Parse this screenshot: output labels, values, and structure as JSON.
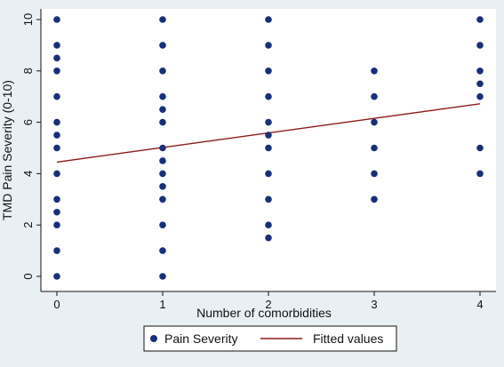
{
  "chart_data": {
    "type": "scatter",
    "xlabel": "Number of comorbidities",
    "ylabel": "TMD Pain Severity (0-10)",
    "xlim": [
      0,
      4
    ],
    "ylim": [
      0,
      10
    ],
    "x_ticks": [
      0,
      1,
      2,
      3,
      4
    ],
    "y_ticks": [
      0,
      2,
      4,
      6,
      8,
      10
    ],
    "grid": false,
    "legend_position": "bottom",
    "series": [
      {
        "name": "Pain Severity",
        "kind": "scatter",
        "color": "#1a2f7a",
        "points": [
          [
            0,
            10
          ],
          [
            0,
            9
          ],
          [
            0,
            8.5
          ],
          [
            0,
            8
          ],
          [
            0,
            7
          ],
          [
            0,
            6
          ],
          [
            0,
            5.5
          ],
          [
            0,
            5
          ],
          [
            0,
            4
          ],
          [
            0,
            3
          ],
          [
            0,
            2.5
          ],
          [
            0,
            2
          ],
          [
            0,
            1
          ],
          [
            0,
            0
          ],
          [
            1,
            10
          ],
          [
            1,
            9
          ],
          [
            1,
            8
          ],
          [
            1,
            7
          ],
          [
            1,
            6.5
          ],
          [
            1,
            6
          ],
          [
            1,
            5
          ],
          [
            1,
            4.5
          ],
          [
            1,
            4
          ],
          [
            1,
            3.5
          ],
          [
            1,
            3
          ],
          [
            1,
            2
          ],
          [
            1,
            1
          ],
          [
            1,
            0
          ],
          [
            2,
            10
          ],
          [
            2,
            9
          ],
          [
            2,
            8
          ],
          [
            2,
            7
          ],
          [
            2,
            6
          ],
          [
            2,
            5.5
          ],
          [
            2,
            5
          ],
          [
            2,
            4
          ],
          [
            2,
            3
          ],
          [
            2,
            2
          ],
          [
            2,
            1.5
          ],
          [
            3,
            8
          ],
          [
            3,
            7
          ],
          [
            3,
            6
          ],
          [
            3,
            5
          ],
          [
            3,
            4
          ],
          [
            3,
            3
          ],
          [
            4,
            10
          ],
          [
            4,
            9
          ],
          [
            4,
            8
          ],
          [
            4,
            7.5
          ],
          [
            4,
            7
          ],
          [
            4,
            5
          ],
          [
            4,
            4
          ]
        ]
      },
      {
        "name": "Fitted values",
        "kind": "line",
        "color": "#8b1a1a",
        "points": [
          [
            0,
            4.45
          ],
          [
            4,
            6.72
          ]
        ]
      }
    ]
  }
}
